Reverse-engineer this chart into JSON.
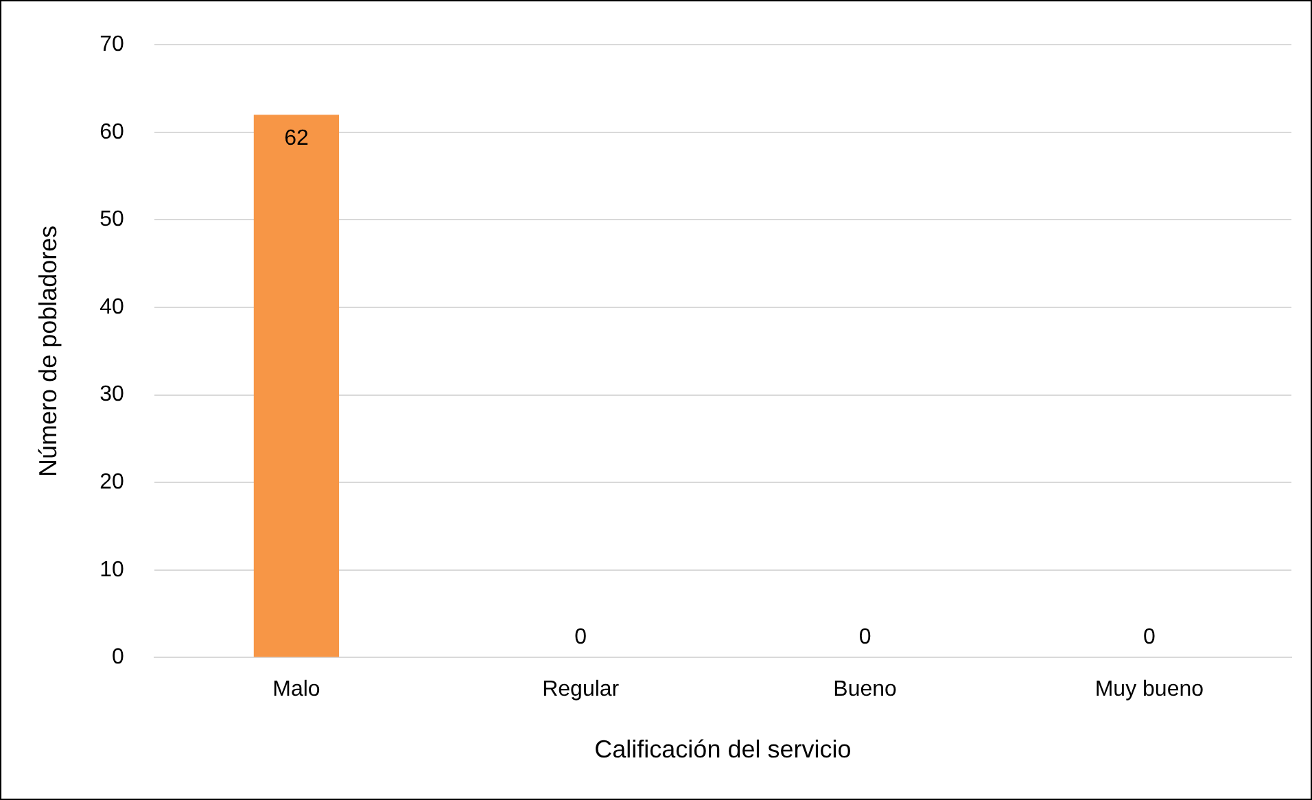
{
  "chart_data": {
    "type": "bar",
    "xlabel": "Calificación del servicio",
    "ylabel": "Número de pobladores",
    "categories": [
      "Malo",
      "Regular",
      "Bueno",
      "Muy bueno"
    ],
    "values": [
      62,
      0,
      0,
      0
    ],
    "color": "#f79646",
    "ylim": [
      0,
      70
    ],
    "yticks": [
      0,
      10,
      20,
      30,
      40,
      50,
      60,
      70
    ],
    "grid": "y",
    "data_labels": true,
    "legend": false
  }
}
